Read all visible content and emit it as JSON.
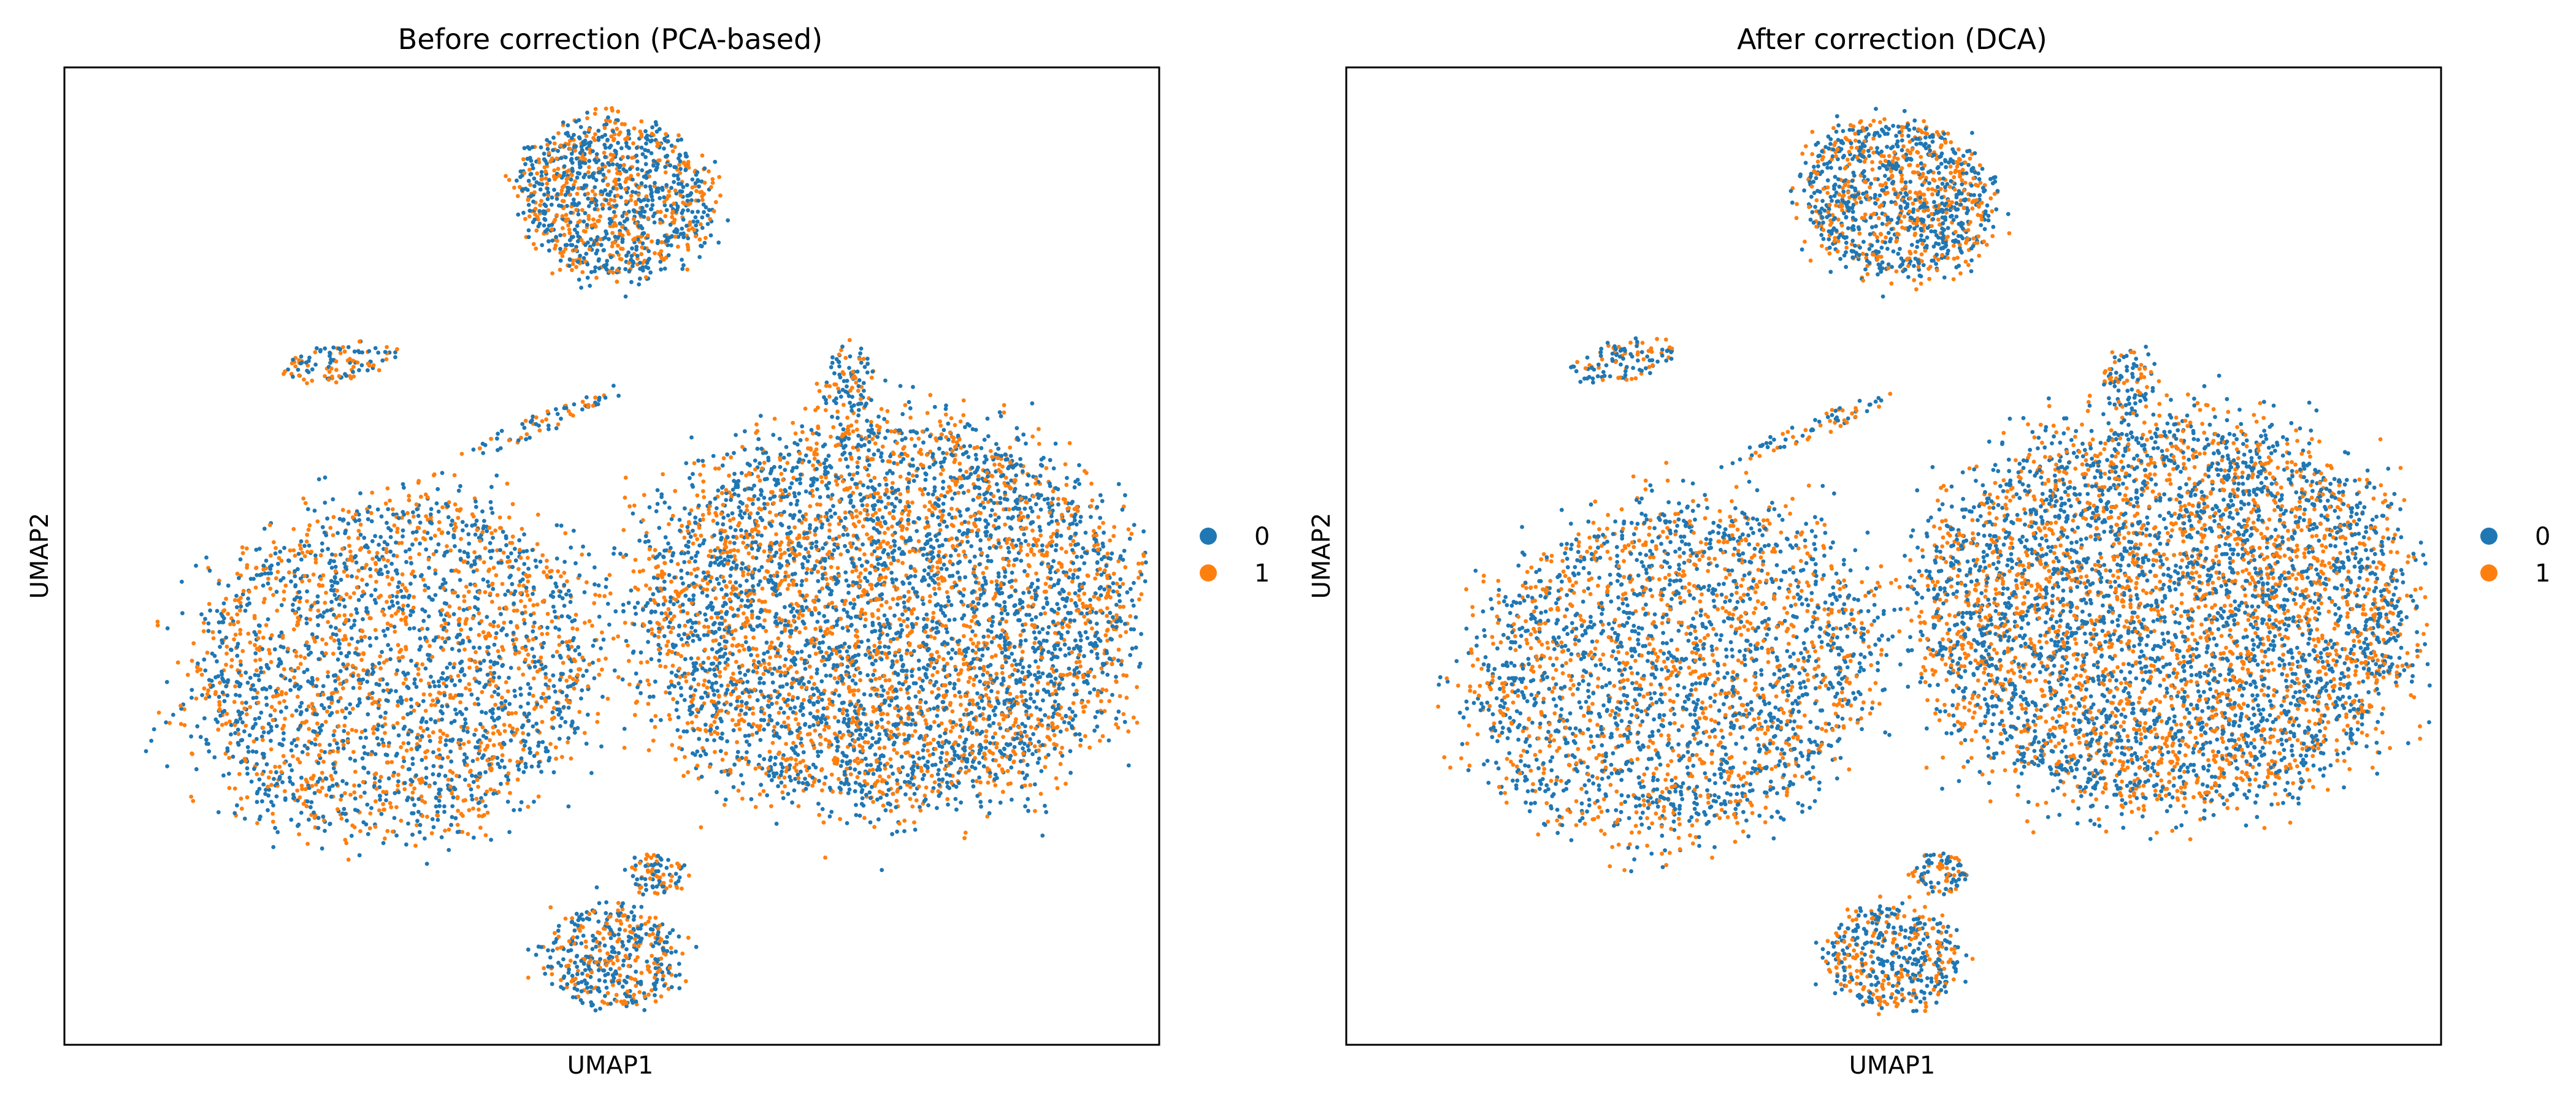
{
  "chart_data": [
    {
      "type": "scatter",
      "title": "Before correction (PCA-based)",
      "xlabel": "UMAP1",
      "ylabel": "UMAP2",
      "grid": false,
      "ticks": false,
      "legend": {
        "placement": "right",
        "entries": [
          {
            "label": "0",
            "color": "#1f77b4"
          },
          {
            "label": "1",
            "color": "#ff7f0e"
          }
        ]
      },
      "clusters": [
        {
          "cx": 0.504,
          "cy": 0.134,
          "rx": 0.085,
          "ry": 0.075,
          "n": 1100,
          "rot": 0.45
        },
        {
          "cx": 0.253,
          "cy": 0.301,
          "rx": 0.045,
          "ry": 0.018,
          "n": 110,
          "rot": -0.2
        },
        {
          "cx": 0.43,
          "cy": 0.367,
          "rx": 0.075,
          "ry": 0.009,
          "n": 70,
          "rot": -0.45
        },
        {
          "cx": 0.716,
          "cy": 0.321,
          "rx": 0.024,
          "ry": 0.034,
          "n": 90,
          "rot": 0
        },
        {
          "cx": 0.3,
          "cy": 0.615,
          "rx": 0.18,
          "ry": 0.16,
          "n": 2600,
          "rot": -0.55
        },
        {
          "cx": 0.75,
          "cy": 0.56,
          "rx": 0.215,
          "ry": 0.19,
          "n": 5200,
          "rot": 0
        },
        {
          "cx": 0.5,
          "cy": 0.91,
          "rx": 0.06,
          "ry": 0.05,
          "n": 450,
          "rot": 0
        },
        {
          "cx": 0.542,
          "cy": 0.825,
          "rx": 0.025,
          "ry": 0.02,
          "n": 90,
          "rot": 0
        }
      ]
    },
    {
      "type": "scatter",
      "title": "After correction (DCA)",
      "xlabel": "UMAP1",
      "ylabel": "UMAP2",
      "grid": false,
      "ticks": false,
      "legend": {
        "placement": "right",
        "entries": [
          {
            "label": "0",
            "color": "#1f77b4"
          },
          {
            "label": "1",
            "color": "#ff7f0e"
          }
        ]
      },
      "clusters": [
        {
          "cx": 0.504,
          "cy": 0.134,
          "rx": 0.085,
          "ry": 0.075,
          "n": 1100,
          "rot": 0.45
        },
        {
          "cx": 0.253,
          "cy": 0.301,
          "rx": 0.045,
          "ry": 0.018,
          "n": 110,
          "rot": -0.2
        },
        {
          "cx": 0.43,
          "cy": 0.367,
          "rx": 0.075,
          "ry": 0.009,
          "n": 70,
          "rot": -0.45
        },
        {
          "cx": 0.716,
          "cy": 0.321,
          "rx": 0.024,
          "ry": 0.034,
          "n": 90,
          "rot": 0
        },
        {
          "cx": 0.3,
          "cy": 0.615,
          "rx": 0.18,
          "ry": 0.16,
          "n": 2600,
          "rot": -0.55
        },
        {
          "cx": 0.75,
          "cy": 0.56,
          "rx": 0.215,
          "ry": 0.19,
          "n": 5200,
          "rot": 0
        },
        {
          "cx": 0.5,
          "cy": 0.91,
          "rx": 0.06,
          "ry": 0.05,
          "n": 450,
          "rot": 0
        },
        {
          "cx": 0.542,
          "cy": 0.825,
          "rx": 0.025,
          "ry": 0.02,
          "n": 90,
          "rot": 0
        }
      ]
    }
  ]
}
